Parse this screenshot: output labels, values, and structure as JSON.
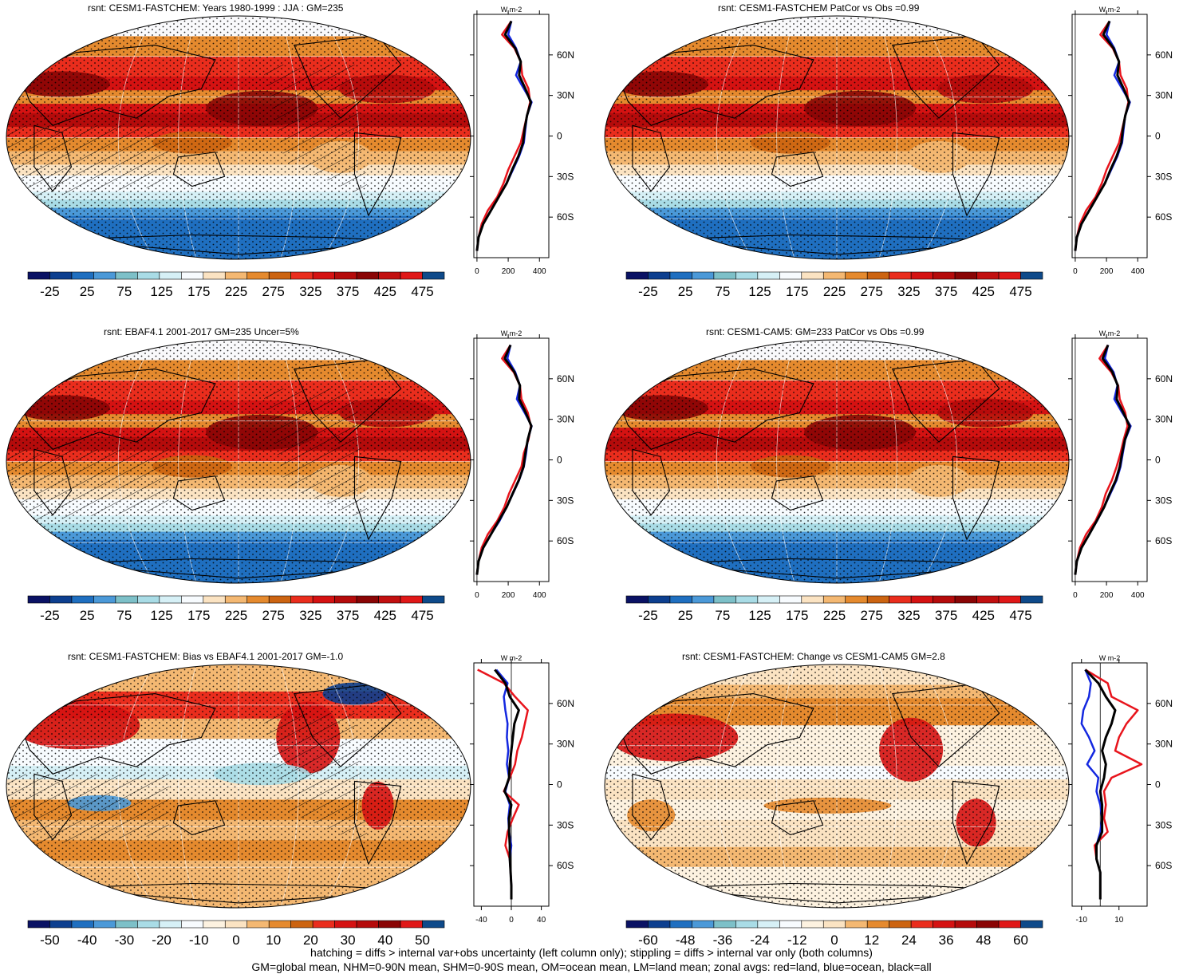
{
  "colors": {
    "red": "#e8141c",
    "blue": "#1428e0",
    "black": "#000000",
    "coast": "#000000",
    "grid": "#ffffff"
  },
  "palette_abs": [
    "#0a1264",
    "#0d3f8f",
    "#1f6fc0",
    "#4b99d8",
    "#7dc0c8",
    "#a9dce6",
    "#d6f0f6",
    "#f7fbfe",
    "#fbe3c2",
    "#f4b872",
    "#e58a2e",
    "#cc6411",
    "#ea2d1d",
    "#d51212",
    "#b50b0b",
    "#8a0505",
    "#c21010",
    "#e01818",
    "#0e4a8a"
  ],
  "palette_diff": [
    "#0a1264",
    "#0d3f8f",
    "#1f6fc0",
    "#4b99d8",
    "#7dc0c8",
    "#a9dce6",
    "#d6f0f6",
    "#f7fbfe",
    "#fdf2e0",
    "#fbe3c2",
    "#f4b872",
    "#e58a2e",
    "#cc6411",
    "#ea2d1d",
    "#d51212",
    "#b50b0b",
    "#8a0505",
    "#e01818",
    "#0e4a8a"
  ],
  "panels": [
    {
      "title": "rsnt: CESM1-FASTCHEM: Years 1980-1999 : JJA : GM=235",
      "map_kind": "abs",
      "hatch": true,
      "colorbar_labels": [
        "-25",
        "25",
        "75",
        "125",
        "175",
        "225",
        "275",
        "325",
        "375",
        "425",
        "475"
      ],
      "chart_data": {
        "type": "line",
        "title": "rsnt: CESM1-FASTCHEM: Years 1980-1999 : JJA : GM=235",
        "xlabel": "W m-2",
        "ylabel": "",
        "xlim": [
          -20,
          460
        ],
        "ylim": [
          -90,
          90
        ],
        "x_ticks": [
          "0",
          "200",
          "400"
        ],
        "y_ticks": [
          "60N",
          "30N",
          "0",
          "30S",
          "60S"
        ],
        "latitude": [
          -85,
          -75,
          -65,
          -55,
          -45,
          -35,
          -25,
          -15,
          -5,
          5,
          15,
          25,
          35,
          45,
          55,
          65,
          75,
          85
        ],
        "series": [
          {
            "name": "land",
            "color": "red",
            "values": [
              0,
              10,
              30,
              70,
              130,
              170,
              200,
              240,
              280,
              300,
              320,
              340,
              330,
              290,
              280,
              240,
              160,
              220
            ]
          },
          {
            "name": "ocean",
            "color": "blue",
            "values": [
              0,
              10,
              40,
              90,
              140,
              190,
              230,
              270,
              300,
              310,
              320,
              350,
              300,
              250,
              280,
              250,
              200,
              220
            ]
          },
          {
            "name": "all",
            "color": "black",
            "values": [
              0,
              10,
              40,
              90,
              140,
              190,
              225,
              265,
              295,
              305,
              320,
              345,
              310,
              270,
              280,
              245,
              180,
              220
            ]
          }
        ]
      }
    },
    {
      "title": "rsnt: CESM1-FASTCHEM PatCor vs Obs =0.99",
      "map_kind": "abs",
      "hatch": false,
      "colorbar_labels": [
        "-25",
        "25",
        "75",
        "125",
        "175",
        "225",
        "275",
        "325",
        "375",
        "425",
        "475"
      ],
      "chart_data": {
        "type": "line",
        "title": "rsnt: CESM1-FASTCHEM PatCor vs Obs =0.99",
        "xlabel": "W m-2",
        "ylabel": "",
        "xlim": [
          -20,
          460
        ],
        "ylim": [
          -90,
          90
        ],
        "x_ticks": [
          "0",
          "200",
          "400"
        ],
        "y_ticks": [
          "60N",
          "30N",
          "0",
          "30S",
          "60S"
        ],
        "latitude": [
          -85,
          -75,
          -65,
          -55,
          -45,
          -35,
          -25,
          -15,
          -5,
          5,
          15,
          25,
          35,
          45,
          55,
          65,
          75,
          85
        ],
        "series": [
          {
            "name": "land",
            "color": "red",
            "values": [
              0,
              10,
              30,
              70,
              130,
              170,
              200,
              240,
              280,
              300,
              320,
              340,
              330,
              290,
              280,
              240,
              160,
              220
            ]
          },
          {
            "name": "ocean",
            "color": "blue",
            "values": [
              0,
              10,
              40,
              90,
              140,
              190,
              230,
              270,
              300,
              310,
              320,
              350,
              300,
              250,
              280,
              250,
              200,
              220
            ]
          },
          {
            "name": "all",
            "color": "black",
            "values": [
              0,
              10,
              40,
              90,
              140,
              190,
              225,
              265,
              295,
              305,
              320,
              345,
              310,
              270,
              280,
              245,
              180,
              220
            ]
          }
        ]
      }
    },
    {
      "title": "rsnt: EBAF4.1 2001-2017 GM=235 Uncer=5%",
      "map_kind": "abs",
      "hatch": true,
      "colorbar_labels": [
        "-25",
        "25",
        "75",
        "125",
        "175",
        "225",
        "275",
        "325",
        "375",
        "425",
        "475"
      ],
      "chart_data": {
        "type": "line",
        "title": "rsnt: EBAF4.1 2001-2017 GM=235 Uncer=5%",
        "xlabel": "W m-2",
        "ylabel": "",
        "xlim": [
          -20,
          460
        ],
        "ylim": [
          -90,
          90
        ],
        "x_ticks": [
          "0",
          "200",
          "400"
        ],
        "y_ticks": [
          "60N",
          "30N",
          "0",
          "30S",
          "60S"
        ],
        "latitude": [
          -85,
          -75,
          -65,
          -55,
          -45,
          -35,
          -25,
          -15,
          -5,
          5,
          15,
          25,
          35,
          45,
          55,
          65,
          75,
          85
        ],
        "series": [
          {
            "name": "land",
            "color": "red",
            "values": [
              0,
              10,
              30,
              70,
              130,
              175,
              205,
              245,
              285,
              300,
              330,
              345,
              325,
              285,
              275,
              235,
              160,
              215
            ]
          },
          {
            "name": "ocean",
            "color": "blue",
            "values": [
              0,
              10,
              40,
              90,
              145,
              190,
              230,
              270,
              300,
              315,
              325,
              350,
              305,
              255,
              275,
              245,
              195,
              215
            ]
          },
          {
            "name": "all",
            "color": "black",
            "values": [
              0,
              10,
              40,
              90,
              140,
              190,
              228,
              268,
              298,
              310,
              325,
              348,
              312,
              270,
              275,
              240,
              178,
              215
            ]
          }
        ]
      }
    },
    {
      "title": "rsnt: CESM1-CAM5: GM=233 PatCor vs Obs =0.99",
      "map_kind": "abs",
      "hatch": false,
      "colorbar_labels": [
        "-25",
        "25",
        "75",
        "125",
        "175",
        "225",
        "275",
        "325",
        "375",
        "425",
        "475"
      ],
      "chart_data": {
        "type": "line",
        "title": "rsnt: CESM1-CAM5: GM=233 PatCor vs Obs =0.99",
        "xlabel": "W m-2",
        "ylabel": "",
        "xlim": [
          -20,
          460
        ],
        "ylim": [
          -90,
          90
        ],
        "x_ticks": [
          "0",
          "200",
          "400"
        ],
        "y_ticks": [
          "60N",
          "30N",
          "0",
          "30S",
          "60S"
        ],
        "latitude": [
          -85,
          -75,
          -65,
          -55,
          -45,
          -35,
          -25,
          -15,
          -5,
          5,
          15,
          25,
          35,
          45,
          55,
          65,
          75,
          85
        ],
        "series": [
          {
            "name": "land",
            "color": "red",
            "values": [
              0,
              10,
              30,
              70,
              130,
              170,
              195,
              235,
              265,
              290,
              310,
              335,
              320,
              285,
              275,
              230,
              155,
              210
            ]
          },
          {
            "name": "ocean",
            "color": "blue",
            "values": [
              0,
              10,
              40,
              90,
              140,
              185,
              225,
              265,
              290,
              305,
              320,
              355,
              300,
              250,
              270,
              245,
              190,
              210
            ]
          },
          {
            "name": "all",
            "color": "black",
            "values": [
              0,
              10,
              40,
              90,
              138,
              185,
              220,
              260,
              285,
              300,
              318,
              348,
              308,
              265,
              272,
              238,
              175,
              210
            ]
          }
        ]
      }
    },
    {
      "title": "rsnt: CESM1-FASTCHEM: Bias vs EBAF4.1 2001-2017 GM=-1.0",
      "map_kind": "bias",
      "hatch": true,
      "colorbar_labels": [
        "-50",
        "-40",
        "-30",
        "-20",
        "-10",
        "0",
        "10",
        "20",
        "30",
        "40",
        "50"
      ],
      "chart_data": {
        "type": "line",
        "title": "rsnt: CESM1-FASTCHEM: Bias vs EBAF4.1 2001-2017 GM=-1.0",
        "xlabel": "W m-2",
        "ylabel": "",
        "xlim": [
          -50,
          50
        ],
        "ylim": [
          -90,
          90
        ],
        "x_ticks": [
          "-40",
          "0",
          "40"
        ],
        "y_ticks": [
          "60N",
          "30N",
          "0",
          "30S",
          "60S"
        ],
        "latitude": [
          -85,
          -75,
          -65,
          -55,
          -45,
          -35,
          -25,
          -15,
          -5,
          5,
          15,
          25,
          35,
          45,
          55,
          65,
          75,
          85
        ],
        "series": [
          {
            "name": "land",
            "color": "red",
            "values": [
              0,
              0,
              -1,
              -2,
              -8,
              -5,
              2,
              10,
              -10,
              -2,
              5,
              8,
              14,
              18,
              22,
              5,
              -10,
              -45
            ]
          },
          {
            "name": "ocean",
            "color": "blue",
            "values": [
              0,
              0,
              -1,
              -2,
              0,
              -3,
              -4,
              -2,
              -8,
              -3,
              -6,
              -4,
              -6,
              -5,
              -8,
              -10,
              -5,
              -20
            ]
          },
          {
            "name": "all",
            "color": "black",
            "values": [
              0,
              0,
              -1,
              -2,
              -2,
              -3,
              -3,
              0,
              -9,
              -3,
              -2,
              0,
              2,
              4,
              10,
              -2,
              -8,
              -22
            ]
          }
        ]
      }
    },
    {
      "title": "rsnt: CESM1-FASTCHEM: Change vs CESM1-CAM5 GM=2.8",
      "map_kind": "change",
      "hatch": false,
      "colorbar_labels": [
        "-60",
        "-48",
        "-36",
        "-24",
        "-12",
        "0",
        "12",
        "24",
        "36",
        "48",
        "60"
      ],
      "chart_data": {
        "type": "line",
        "title": "rsnt: CESM1-FASTCHEM: Change vs CESM1-CAM5 GM=2.8",
        "xlabel": "W m-2",
        "ylabel": "",
        "xlim": [
          -15,
          25
        ],
        "ylim": [
          -90,
          90
        ],
        "x_ticks": [
          "-10",
          "10"
        ],
        "y_ticks": [
          "60N",
          "30N",
          "0",
          "30S",
          "60S"
        ],
        "latitude": [
          -85,
          -75,
          -65,
          -55,
          -45,
          -35,
          -25,
          -15,
          -5,
          5,
          15,
          25,
          35,
          45,
          55,
          65,
          75,
          85
        ],
        "series": [
          {
            "name": "land",
            "color": "red",
            "values": [
              0,
              0,
              0,
              -2,
              -3,
              4,
              2,
              3,
              2,
              6,
              22,
              8,
              10,
              14,
              20,
              6,
              4,
              -8
            ]
          },
          {
            "name": "ocean",
            "color": "blue",
            "values": [
              0,
              0,
              0,
              -2,
              -2,
              0,
              1,
              0,
              -2,
              -1,
              -7,
              -3,
              -6,
              -10,
              -9,
              -6,
              -5,
              -8
            ]
          },
          {
            "name": "all",
            "color": "black",
            "values": [
              0,
              0,
              0,
              -2,
              -2,
              1,
              1,
              1,
              0,
              2,
              3,
              1,
              3,
              6,
              8,
              3,
              -1,
              -8
            ]
          }
        ]
      }
    }
  ],
  "footnote": [
    "hatching = diffs > internal var+obs uncertainty (left column only); stippling = diffs > internal var only (both columns)",
    "GM=global mean, NHM=0-90N mean, SHM=0-90S mean, OM=ocean mean, LM=land mean; zonal avgs: red=land, blue=ocean, black=all"
  ]
}
